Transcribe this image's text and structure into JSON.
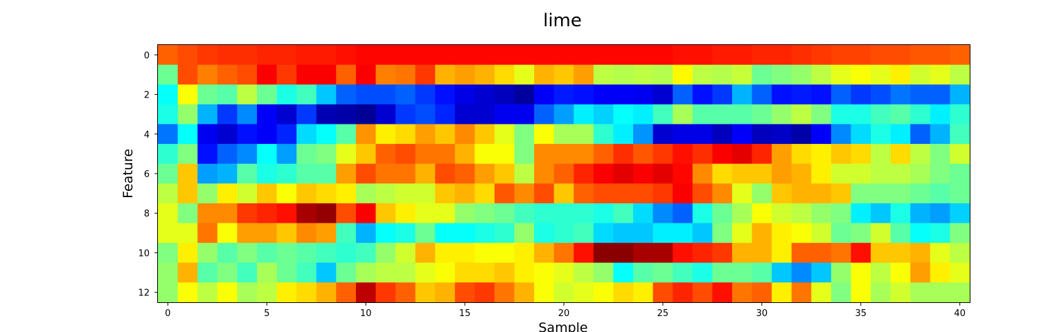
{
  "chart_data": {
    "type": "heatmap",
    "title": "lime",
    "xlabel": "Sample",
    "ylabel": "Feature",
    "colormap": "jet",
    "value_range": [
      0,
      1
    ],
    "x_ticks": [
      "0",
      "5",
      "10",
      "15",
      "20",
      "25",
      "30",
      "35",
      "40"
    ],
    "y_ticks": [
      "0",
      "2",
      "4",
      "6",
      "8",
      "10",
      "12"
    ],
    "n_samples": 41,
    "n_features": 13,
    "values": [
      [
        0.78,
        0.8,
        0.82,
        0.83,
        0.83,
        0.84,
        0.84,
        0.85,
        0.85,
        0.86,
        0.87,
        0.87,
        0.87,
        0.87,
        0.87,
        0.87,
        0.87,
        0.87,
        0.87,
        0.87,
        0.87,
        0.87,
        0.87,
        0.87,
        0.87,
        0.87,
        0.86,
        0.86,
        0.85,
        0.85,
        0.84,
        0.84,
        0.83,
        0.82,
        0.81,
        0.81,
        0.8,
        0.8,
        0.79,
        0.79,
        0.78
      ],
      [
        0.48,
        0.8,
        0.75,
        0.78,
        0.8,
        0.88,
        0.82,
        0.88,
        0.88,
        0.78,
        0.88,
        0.75,
        0.76,
        0.82,
        0.7,
        0.72,
        0.7,
        0.66,
        0.6,
        0.7,
        0.68,
        0.72,
        0.56,
        0.55,
        0.56,
        0.55,
        0.63,
        0.56,
        0.55,
        0.57,
        0.48,
        0.5,
        0.52,
        0.56,
        0.6,
        0.62,
        0.6,
        0.64,
        0.58,
        0.6,
        0.56
      ],
      [
        0.38,
        0.62,
        0.48,
        0.46,
        0.56,
        0.48,
        0.4,
        0.44,
        0.32,
        0.22,
        0.2,
        0.2,
        0.22,
        0.18,
        0.14,
        0.1,
        0.08,
        0.06,
        0.03,
        0.12,
        0.15,
        0.14,
        0.12,
        0.12,
        0.11,
        0.08,
        0.22,
        0.14,
        0.18,
        0.3,
        0.22,
        0.14,
        0.15,
        0.14,
        0.22,
        0.18,
        0.2,
        0.24,
        0.22,
        0.22,
        0.3
      ],
      [
        0.4,
        0.52,
        0.3,
        0.18,
        0.26,
        0.12,
        0.08,
        0.18,
        0.05,
        0.04,
        0.02,
        0.08,
        0.18,
        0.2,
        0.16,
        0.08,
        0.08,
        0.11,
        0.11,
        0.22,
        0.28,
        0.36,
        0.33,
        0.38,
        0.36,
        0.44,
        0.54,
        0.46,
        0.46,
        0.46,
        0.48,
        0.52,
        0.56,
        0.5,
        0.4,
        0.4,
        0.44,
        0.46,
        0.42,
        0.36,
        0.42
      ],
      [
        0.24,
        0.38,
        0.11,
        0.08,
        0.14,
        0.12,
        0.16,
        0.34,
        0.38,
        0.46,
        0.73,
        0.64,
        0.66,
        0.72,
        0.68,
        0.74,
        0.68,
        0.6,
        0.5,
        0.62,
        0.54,
        0.54,
        0.42,
        0.36,
        0.27,
        0.08,
        0.1,
        0.1,
        0.06,
        0.12,
        0.06,
        0.07,
        0.04,
        0.12,
        0.26,
        0.34,
        0.4,
        0.36,
        0.22,
        0.3,
        0.44
      ],
      [
        0.42,
        0.5,
        0.14,
        0.22,
        0.26,
        0.38,
        0.28,
        0.48,
        0.5,
        0.6,
        0.68,
        0.78,
        0.8,
        0.76,
        0.76,
        0.7,
        0.62,
        0.62,
        0.5,
        0.74,
        0.74,
        0.74,
        0.78,
        0.83,
        0.79,
        0.82,
        0.86,
        0.83,
        0.88,
        0.9,
        0.84,
        0.72,
        0.66,
        0.64,
        0.68,
        0.66,
        0.56,
        0.66,
        0.56,
        0.5,
        0.58
      ],
      [
        0.48,
        0.68,
        0.28,
        0.3,
        0.46,
        0.4,
        0.42,
        0.46,
        0.46,
        0.72,
        0.8,
        0.76,
        0.76,
        0.7,
        0.8,
        0.78,
        0.72,
        0.68,
        0.56,
        0.74,
        0.78,
        0.84,
        0.88,
        0.9,
        0.88,
        0.9,
        0.87,
        0.74,
        0.66,
        0.68,
        0.68,
        0.72,
        0.7,
        0.64,
        0.58,
        0.58,
        0.56,
        0.56,
        0.54,
        0.5,
        0.48
      ],
      [
        0.56,
        0.68,
        0.52,
        0.64,
        0.58,
        0.68,
        0.62,
        0.68,
        0.66,
        0.64,
        0.54,
        0.56,
        0.58,
        0.58,
        0.68,
        0.7,
        0.66,
        0.79,
        0.74,
        0.8,
        0.68,
        0.78,
        0.8,
        0.8,
        0.8,
        0.82,
        0.88,
        0.8,
        0.74,
        0.6,
        0.52,
        0.68,
        0.7,
        0.7,
        0.68,
        0.5,
        0.5,
        0.5,
        0.48,
        0.46,
        0.48
      ],
      [
        0.6,
        0.5,
        0.74,
        0.74,
        0.82,
        0.84,
        0.86,
        0.96,
        0.98,
        0.8,
        0.88,
        0.68,
        0.64,
        0.6,
        0.6,
        0.52,
        0.5,
        0.48,
        0.44,
        0.42,
        0.42,
        0.42,
        0.4,
        0.44,
        0.34,
        0.26,
        0.22,
        0.4,
        0.48,
        0.54,
        0.62,
        0.58,
        0.56,
        0.52,
        0.5,
        0.36,
        0.32,
        0.4,
        0.3,
        0.28,
        0.33
      ],
      [
        0.6,
        0.6,
        0.76,
        0.62,
        0.72,
        0.72,
        0.68,
        0.74,
        0.72,
        0.44,
        0.3,
        0.38,
        0.4,
        0.48,
        0.38,
        0.38,
        0.4,
        0.42,
        0.52,
        0.4,
        0.42,
        0.44,
        0.34,
        0.32,
        0.32,
        0.36,
        0.36,
        0.32,
        0.5,
        0.6,
        0.7,
        0.64,
        0.62,
        0.58,
        0.48,
        0.5,
        0.58,
        0.46,
        0.38,
        0.4,
        0.5
      ],
      [
        0.5,
        0.64,
        0.52,
        0.46,
        0.5,
        0.46,
        0.48,
        0.46,
        0.44,
        0.42,
        0.44,
        0.52,
        0.58,
        0.7,
        0.64,
        0.64,
        0.62,
        0.62,
        0.64,
        0.7,
        0.76,
        0.86,
        0.99,
        0.99,
        0.96,
        0.96,
        0.86,
        0.84,
        0.82,
        0.7,
        0.7,
        0.64,
        0.78,
        0.78,
        0.76,
        0.86,
        0.68,
        0.68,
        0.7,
        0.6,
        0.56
      ],
      [
        0.52,
        0.7,
        0.46,
        0.5,
        0.44,
        0.54,
        0.48,
        0.44,
        0.32,
        0.48,
        0.54,
        0.56,
        0.56,
        0.6,
        0.62,
        0.66,
        0.66,
        0.68,
        0.64,
        0.62,
        0.6,
        0.56,
        0.52,
        0.38,
        0.46,
        0.48,
        0.44,
        0.4,
        0.48,
        0.48,
        0.46,
        0.32,
        0.26,
        0.32,
        0.52,
        0.62,
        0.56,
        0.62,
        0.72,
        0.64,
        0.6
      ],
      [
        0.52,
        0.62,
        0.56,
        0.62,
        0.54,
        0.56,
        0.64,
        0.66,
        0.7,
        0.78,
        0.94,
        0.82,
        0.78,
        0.68,
        0.7,
        0.8,
        0.82,
        0.76,
        0.7,
        0.62,
        0.58,
        0.6,
        0.62,
        0.66,
        0.64,
        0.8,
        0.84,
        0.8,
        0.86,
        0.76,
        0.78,
        0.64,
        0.76,
        0.6,
        0.5,
        0.62,
        0.54,
        0.58,
        0.54,
        0.54,
        0.54
      ]
    ]
  }
}
